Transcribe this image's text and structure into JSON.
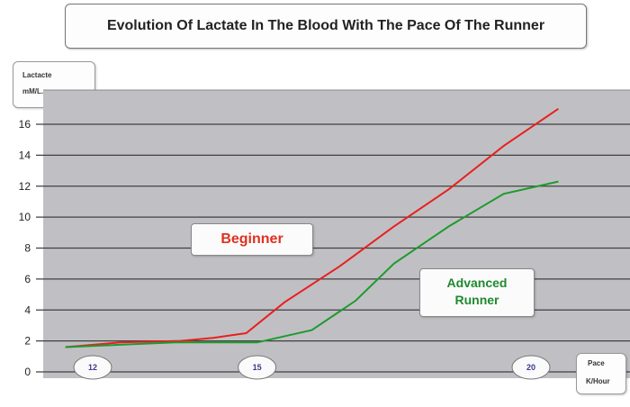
{
  "chart_data": {
    "type": "line",
    "title": "Evolution Of Lactate In The Blood With The Pace Of The Runner",
    "ylabel": [
      "Lactacte",
      "mM/L."
    ],
    "xlabel": [
      "Pace",
      "K/Hour"
    ],
    "y_ticks": [
      "0",
      "2",
      "4",
      "6",
      "8",
      "10",
      "12",
      "14",
      "16"
    ],
    "x_ticks": [
      12,
      15,
      20
    ],
    "ylim": [
      0,
      17
    ],
    "xlim": [
      11,
      22
    ],
    "grid": true,
    "series": [
      {
        "name": "Beginner",
        "color": "#e8201e",
        "x": [
          11.5,
          12.5,
          13.6,
          14.2,
          14.8,
          15.5,
          16.5,
          17.5,
          18.5,
          19.5,
          20.5
        ],
        "y": [
          1.6,
          1.9,
          2.0,
          2.2,
          2.5,
          4.5,
          6.8,
          9.4,
          11.8,
          14.6,
          17.0
        ]
      },
      {
        "name": "Advanced Runner",
        "color": "#1e9a2e",
        "x": [
          11.5,
          13.5,
          14.4,
          15.0,
          16.0,
          16.8,
          17.5,
          18.5,
          19.5,
          20.5
        ],
        "y": [
          1.6,
          1.9,
          1.9,
          1.9,
          2.7,
          4.6,
          7.0,
          9.4,
          11.5,
          12.3
        ]
      }
    ],
    "annotations": [
      "Beginner",
      [
        "Advanced",
        "Runner"
      ]
    ]
  },
  "colors": {
    "plot_background": "#c0c0c4",
    "gridline": "#404040",
    "beginner_text": "#e03020",
    "advanced_text": "#1e8a2e"
  }
}
